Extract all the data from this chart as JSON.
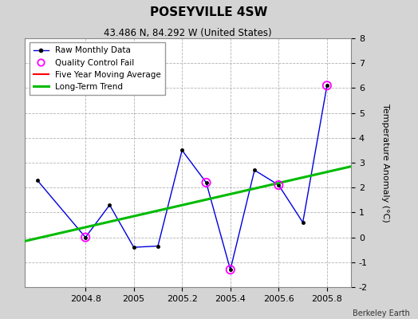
{
  "title": "POSEYVILLE 4SW",
  "subtitle": "43.486 N, 84.292 W (United States)",
  "credit": "Berkeley Earth",
  "raw_x": [
    2004.6,
    2004.8,
    2004.9,
    2005.0,
    2005.1,
    2005.2,
    2005.3,
    2005.4,
    2005.5,
    2005.6,
    2005.7,
    2005.8
  ],
  "raw_y": [
    2.3,
    0.0,
    1.3,
    -0.4,
    -0.35,
    3.5,
    2.2,
    -1.3,
    2.7,
    2.1,
    0.6,
    6.1
  ],
  "qc_fail_x": [
    2004.8,
    2005.3,
    2005.4,
    2005.6,
    2005.8
  ],
  "qc_fail_y": [
    0.0,
    2.2,
    -1.3,
    2.1,
    6.1
  ],
  "trend_x": [
    2004.55,
    2005.9
  ],
  "trend_y": [
    -0.15,
    2.85
  ],
  "xlim": [
    2004.55,
    2005.9
  ],
  "ylim": [
    -2,
    8
  ],
  "yticks": [
    -2,
    -1,
    0,
    1,
    2,
    3,
    4,
    5,
    6,
    7,
    8
  ],
  "xtick_vals": [
    2004.8,
    2005.0,
    2005.2,
    2005.4,
    2005.6,
    2005.8
  ],
  "xtick_labels": [
    "2004.8",
    "2005",
    "2005.2",
    "2005.4",
    "2005.6",
    "2005.8"
  ],
  "ylabel": "Temperature Anomaly (°C)",
  "raw_color": "#0000dd",
  "trend_color": "#00bb00",
  "qc_color": "#ff00ff",
  "ma_color": "#ff0000",
  "bg_color": "#d4d4d4",
  "plot_bg": "#ffffff",
  "grid_color": "#aaaaaa",
  "title_fontsize": 11,
  "subtitle_fontsize": 8.5,
  "label_fontsize": 8,
  "ylabel_fontsize": 8,
  "credit_fontsize": 7
}
